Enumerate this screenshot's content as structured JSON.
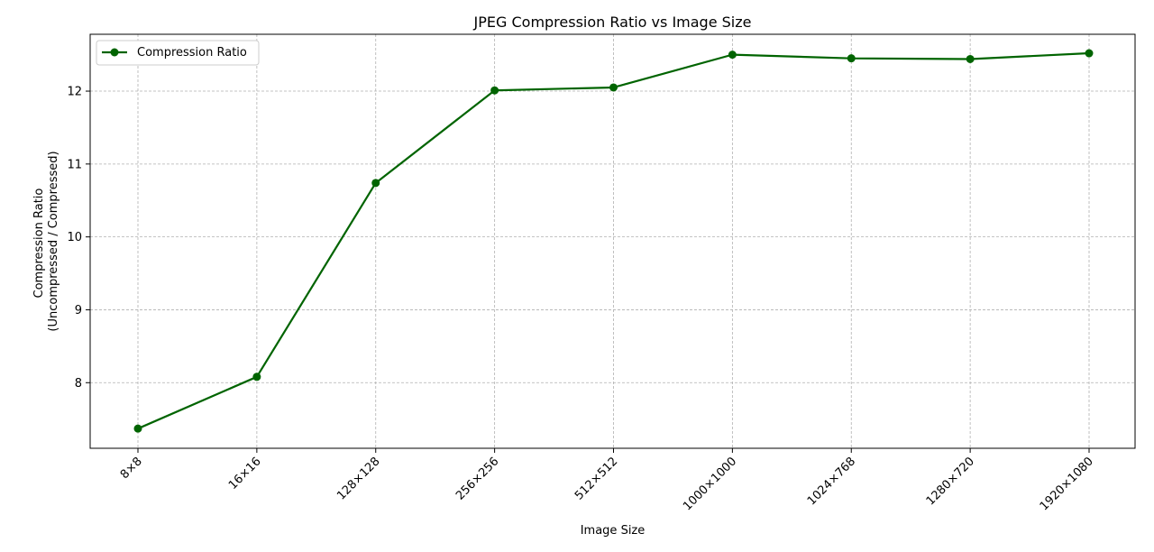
{
  "chart_data": {
    "type": "line",
    "title": "JPEG Compression Ratio vs Image Size",
    "xlabel": "Image Size",
    "ylabel_lines": [
      "Compression Ratio",
      "(Uncompressed / Compressed)"
    ],
    "categories": [
      "8×8",
      "16×16",
      "128×128",
      "256×256",
      "512×512",
      "1000×1000",
      "1024×768",
      "1280×720",
      "1920×1080"
    ],
    "series": [
      {
        "name": "Compression Ratio",
        "values": [
          7.37,
          8.08,
          10.74,
          12.01,
          12.05,
          12.5,
          12.45,
          12.44,
          12.52
        ],
        "color": "#006400",
        "marker": "circle"
      }
    ],
    "yticks": [
      8,
      9,
      10,
      11,
      12
    ],
    "ylim": [
      7.1,
      12.78
    ],
    "grid": true,
    "legend_position": "upper-left",
    "xtick_rotation": -45
  }
}
